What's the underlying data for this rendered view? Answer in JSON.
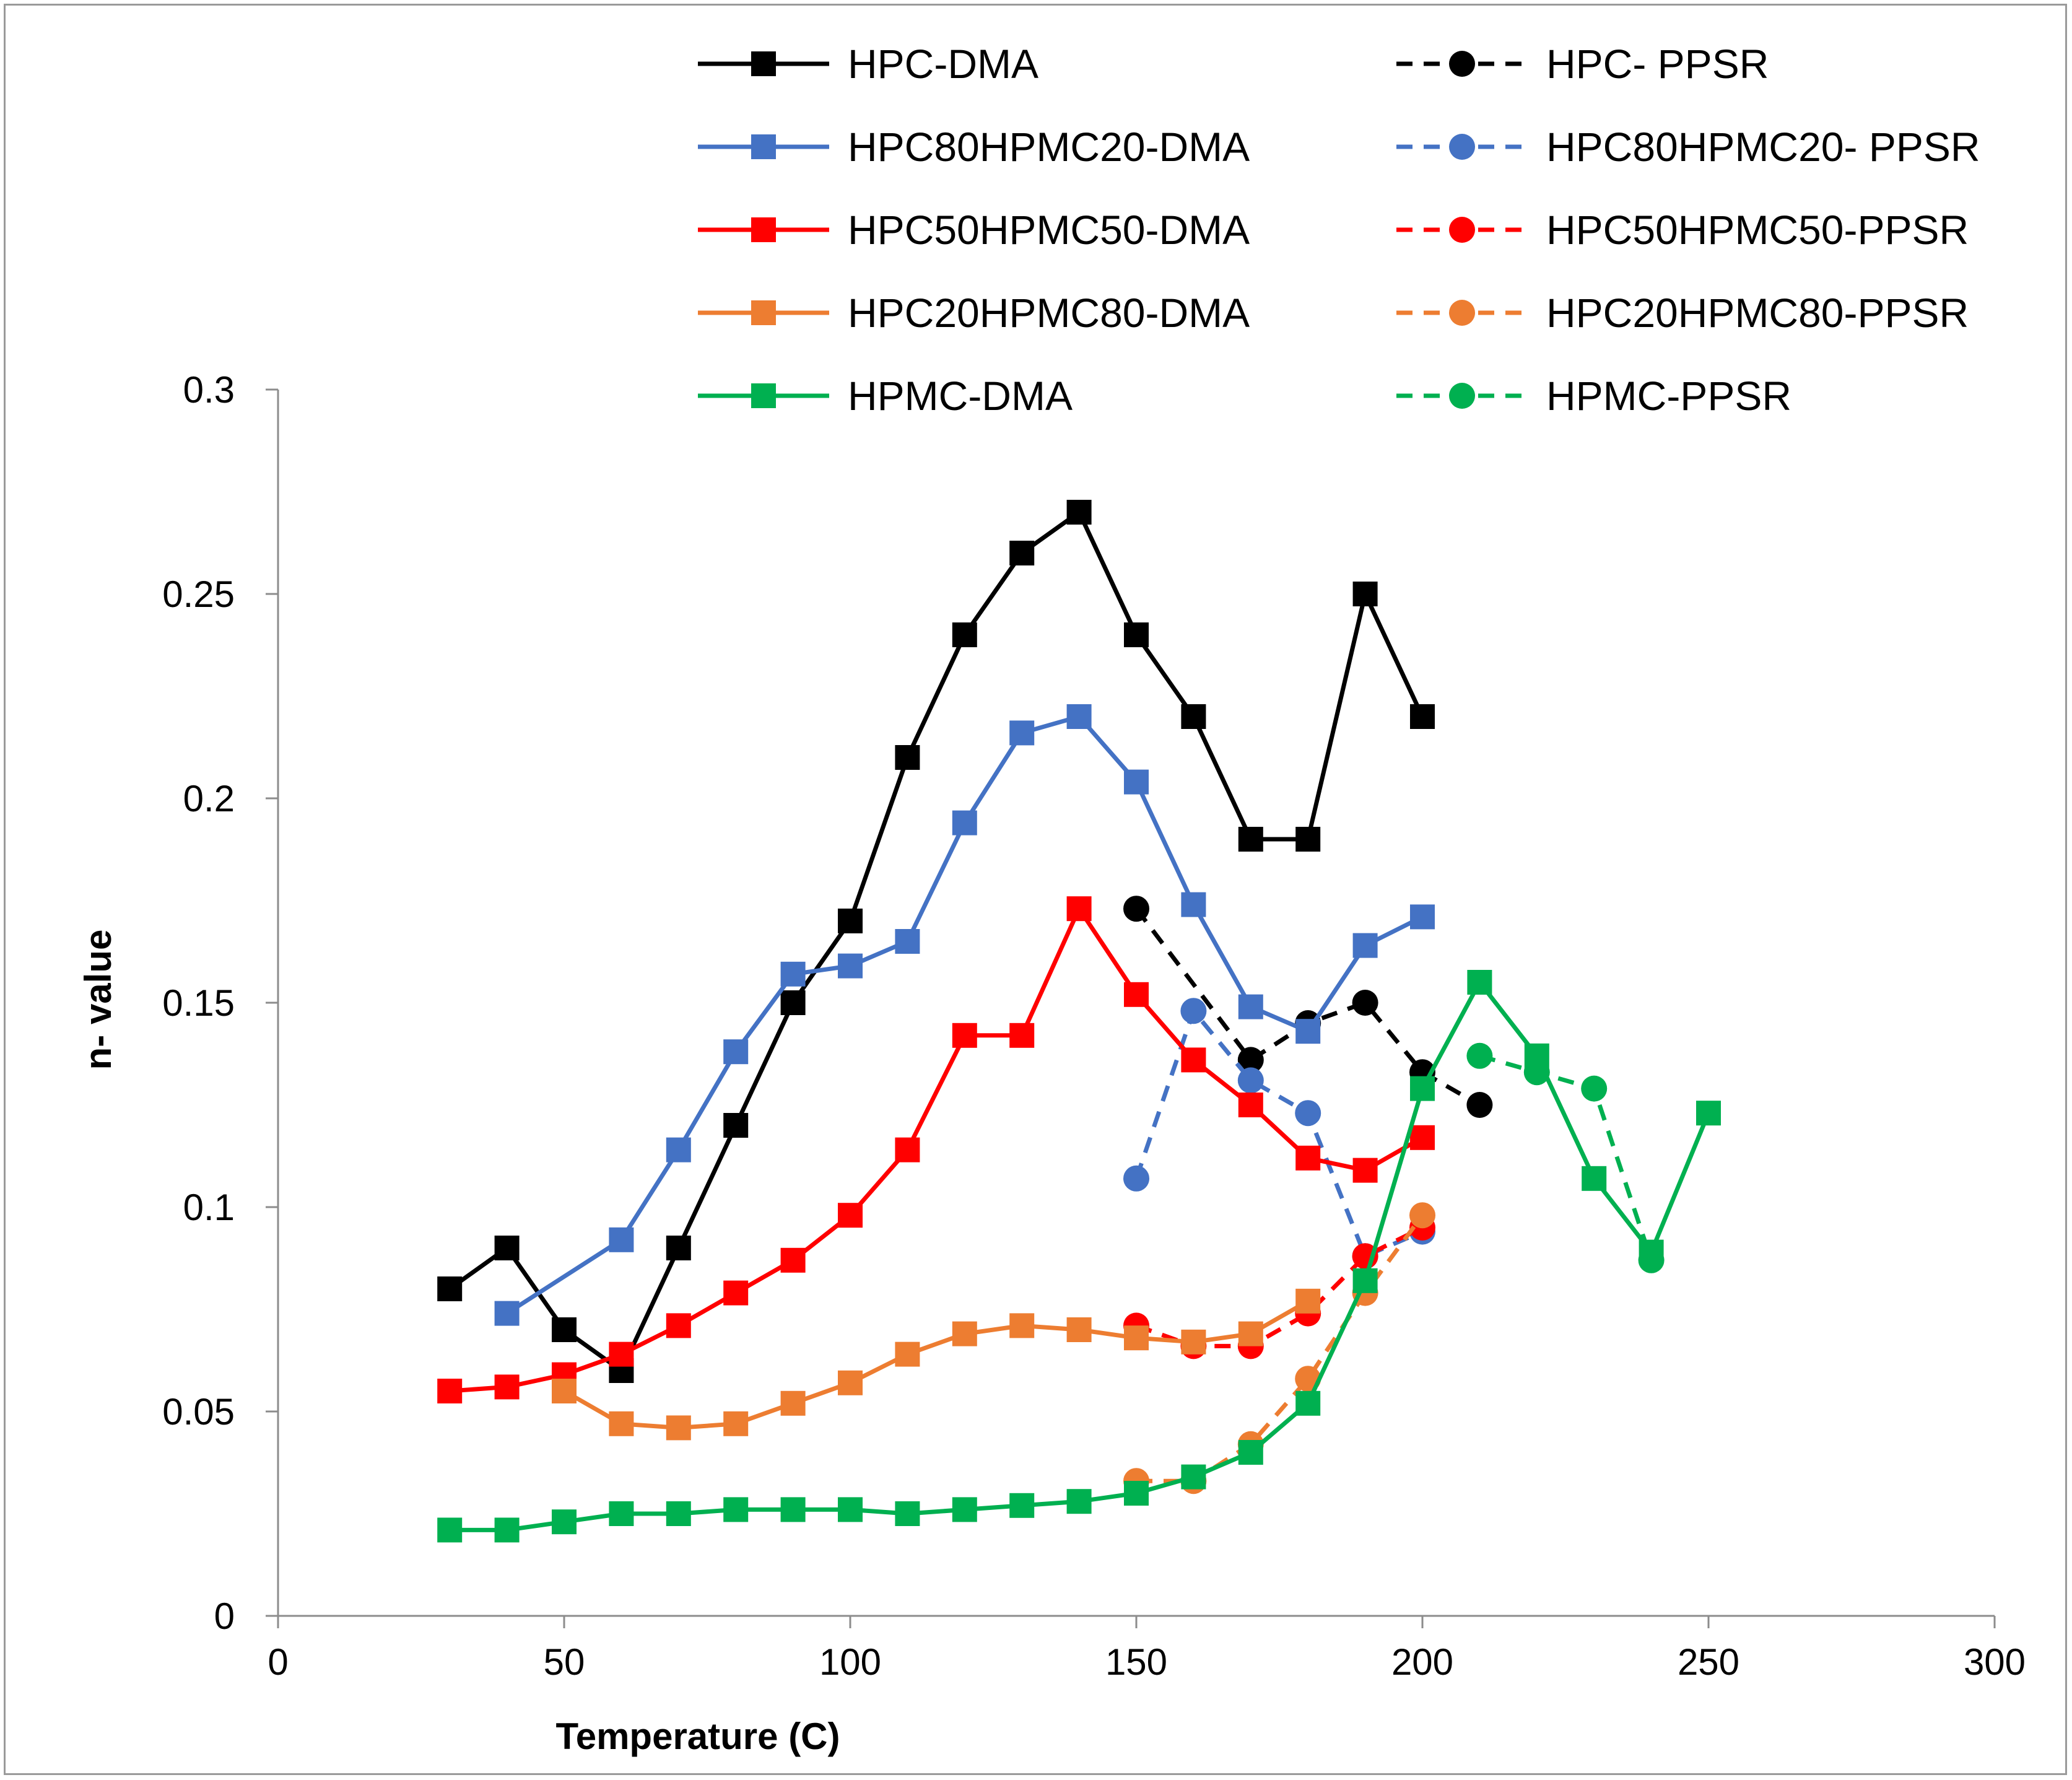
{
  "chart_data": {
    "type": "line",
    "title": "",
    "xlabel": "Temperature (C)",
    "ylabel": "n- value",
    "xlim": [
      0,
      300
    ],
    "ylim": [
      0,
      0.3
    ],
    "xticks": [
      0,
      50,
      100,
      150,
      200,
      250,
      300
    ],
    "yticks": [
      0,
      0.05,
      0.1,
      0.15,
      0.2,
      0.25,
      0.3
    ],
    "xtick_labels": [
      "0",
      "50",
      "100",
      "150",
      "200",
      "250",
      "300"
    ],
    "ytick_labels": [
      "0",
      "0.05",
      "0.1",
      "0.15",
      "0.2",
      "0.25",
      "0.3"
    ],
    "grid": false,
    "legend_position": "top",
    "series": [
      {
        "name": "HPC-DMA",
        "color": "#000000",
        "marker": "square",
        "dash": false,
        "x": [
          30,
          40,
          50,
          60,
          70,
          80,
          90,
          100,
          110,
          120,
          130,
          140,
          150,
          160,
          170,
          180,
          190,
          200
        ],
        "y": [
          0.08,
          0.09,
          0.07,
          0.06,
          0.09,
          0.12,
          0.15,
          0.17,
          0.21,
          0.24,
          0.26,
          0.27,
          0.24,
          0.22,
          0.19,
          0.19,
          0.25,
          0.22
        ]
      },
      {
        "name": "HPC- PPSR",
        "color": "#000000",
        "marker": "circle",
        "dash": true,
        "x": [
          150,
          170,
          180,
          190,
          200,
          210
        ],
        "y": [
          0.173,
          0.136,
          0.145,
          0.15,
          0.133,
          0.125
        ]
      },
      {
        "name": "HPC80HPMC20-DMA",
        "color": "#4472C4",
        "marker": "square",
        "dash": false,
        "x": [
          40,
          60,
          70,
          80,
          90,
          100,
          110,
          120,
          130,
          140,
          150,
          160,
          170,
          180,
          190,
          200
        ],
        "y": [
          0.074,
          0.092,
          0.114,
          0.138,
          0.157,
          0.159,
          0.165,
          0.194,
          0.216,
          0.22,
          0.204,
          0.174,
          0.149,
          0.143,
          0.164,
          0.171
        ]
      },
      {
        "name": "HPC80HPMC20- PPSR",
        "color": "#4472C4",
        "marker": "circle",
        "dash": true,
        "x": [
          150,
          160,
          170,
          180,
          190,
          200
        ],
        "y": [
          0.107,
          0.148,
          0.131,
          0.123,
          0.088,
          0.094
        ]
      },
      {
        "name": "HPC50HPMC50-DMA",
        "color": "#FF0000",
        "marker": "square",
        "dash": false,
        "x": [
          30,
          40,
          50,
          60,
          70,
          80,
          90,
          100,
          110,
          120,
          130,
          140,
          150,
          160,
          170,
          180,
          190,
          200
        ],
        "y": [
          0.055,
          0.056,
          0.059,
          0.064,
          0.071,
          0.079,
          0.087,
          0.098,
          0.114,
          0.142,
          0.142,
          0.173,
          0.152,
          0.136,
          0.125,
          0.112,
          0.109,
          0.117
        ]
      },
      {
        "name": "HPC50HPMC50-PPSR",
        "color": "#FF0000",
        "marker": "circle",
        "dash": true,
        "x": [
          150,
          160,
          170,
          180,
          190,
          200
        ],
        "y": [
          0.071,
          0.066,
          0.066,
          0.074,
          0.088,
          0.095
        ]
      },
      {
        "name": "HPC20HPMC80-DMA",
        "color": "#ED7D31",
        "marker": "square",
        "dash": false,
        "x": [
          50,
          60,
          70,
          80,
          90,
          100,
          110,
          120,
          130,
          140,
          150,
          160,
          170,
          180
        ],
        "y": [
          0.055,
          0.047,
          0.046,
          0.047,
          0.052,
          0.057,
          0.064,
          0.069,
          0.071,
          0.07,
          0.068,
          0.067,
          0.069,
          0.077
        ]
      },
      {
        "name": "HPC20HPMC80-PPSR",
        "color": "#ED7D31",
        "marker": "circle",
        "dash": true,
        "x": [
          150,
          160,
          170,
          180,
          190,
          200
        ],
        "y": [
          0.033,
          0.033,
          0.042,
          0.058,
          0.079,
          0.098
        ]
      },
      {
        "name": "HPMC-DMA",
        "color": "#00B050",
        "marker": "square",
        "dash": false,
        "x": [
          30,
          40,
          50,
          60,
          70,
          80,
          90,
          100,
          110,
          120,
          130,
          140,
          150,
          160,
          170,
          180,
          190,
          200,
          210,
          220,
          230,
          240,
          250
        ],
        "y": [
          0.021,
          0.021,
          0.023,
          0.025,
          0.025,
          0.026,
          0.026,
          0.026,
          0.025,
          0.026,
          0.027,
          0.028,
          0.03,
          0.034,
          0.04,
          0.052,
          0.082,
          0.129,
          0.155,
          0.137,
          0.107,
          0.089,
          0.123
        ]
      },
      {
        "name": "HPMC-PPSR",
        "color": "#00B050",
        "marker": "circle",
        "dash": true,
        "x": [
          210,
          220,
          230,
          240
        ],
        "y": [
          0.137,
          0.133,
          0.129,
          0.087
        ]
      }
    ]
  }
}
